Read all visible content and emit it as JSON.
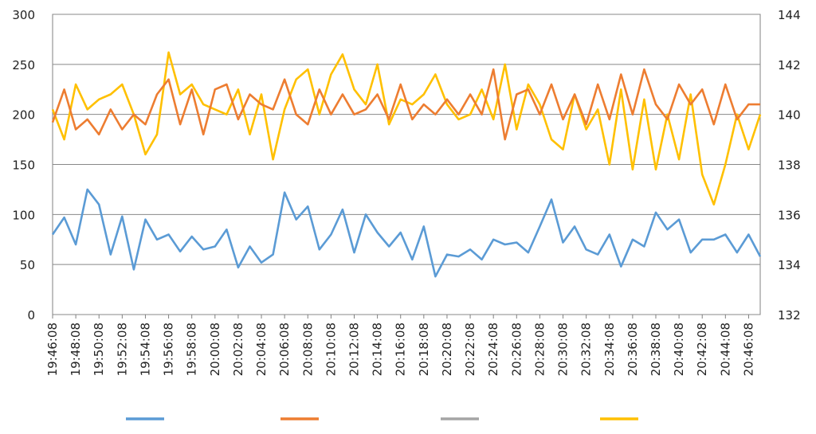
{
  "chart_data": {
    "type": "line",
    "title": "",
    "xlabel": "",
    "ylabel": "",
    "y2label": "",
    "ylim": [
      0,
      300
    ],
    "y2lim": [
      132,
      144
    ],
    "yticks": [
      0,
      50,
      100,
      150,
      200,
      250,
      300
    ],
    "y2ticks": [
      132,
      134,
      136,
      138,
      140,
      142,
      144
    ],
    "xtick_labels": [
      "19:46:08",
      "19:48:08",
      "19:50:08",
      "19:52:08",
      "19:54:08",
      "19:56:08",
      "19:58:08",
      "20:00:08",
      "20:02:08",
      "20:04:08",
      "20:06:08",
      "20:08:08",
      "20:10:08",
      "20:12:08",
      "20:14:08",
      "20:16:08",
      "20:18:08",
      "20:20:08",
      "20:22:08",
      "20:24:08",
      "20:26:08",
      "20:28:08",
      "20:30:08",
      "20:32:08",
      "20:34:08",
      "20:36:08",
      "20:38:08",
      "20:40:08",
      "20:42:08",
      "20:44:08",
      "20:46:08"
    ],
    "minutes_per_label": 2,
    "x_end_minutes": 61,
    "grid": true,
    "legend_position": "bottom",
    "colors": {
      "blue": "#5b9bd5",
      "orange": "#ed7d31",
      "gray": "#a5a5a5",
      "yellow": "#ffc000"
    },
    "series": [
      {
        "color": "#5b9bd5",
        "axis": "left",
        "x": [
          0,
          1,
          2,
          3,
          4,
          5,
          6,
          7,
          8,
          9,
          10,
          11,
          12,
          13,
          14,
          15,
          16,
          17,
          18,
          19,
          20,
          21,
          22,
          23,
          24,
          25,
          26,
          27,
          28,
          29,
          30,
          31,
          32,
          33,
          34,
          35,
          36,
          37,
          38,
          39,
          40,
          41,
          42,
          43,
          44,
          45,
          46,
          47,
          48,
          49,
          50,
          51,
          52,
          53,
          54,
          55,
          56,
          57,
          58,
          59,
          60,
          61
        ],
        "values": [
          80,
          97,
          70,
          125,
          110,
          60,
          98,
          45,
          95,
          75,
          80,
          63,
          78,
          65,
          68,
          85,
          47,
          68,
          52,
          60,
          122,
          95,
          108,
          65,
          80,
          105,
          62,
          100,
          82,
          68,
          82,
          55,
          88,
          38,
          60,
          58,
          65,
          55,
          75,
          70,
          72,
          62,
          88,
          115,
          72,
          88,
          65,
          60,
          80,
          48,
          75,
          68,
          102,
          85,
          95,
          62,
          75,
          75,
          80,
          62,
          80,
          58
        ]
      },
      {
        "color": "#ed7d31",
        "axis": "left",
        "x": [
          0,
          1,
          2,
          3,
          4,
          5,
          6,
          7,
          8,
          9,
          10,
          11,
          12,
          13,
          14,
          15,
          16,
          17,
          18,
          19,
          20,
          21,
          22,
          23,
          24,
          25,
          26,
          27,
          28,
          29,
          30,
          31,
          32,
          33,
          34,
          35,
          36,
          37,
          38,
          39,
          40,
          41,
          42,
          43,
          44,
          45,
          46,
          47,
          48,
          49,
          50,
          51,
          52,
          53,
          54,
          55,
          56,
          57,
          58,
          59,
          60,
          61
        ],
        "values": [
          192,
          225,
          185,
          195,
          180,
          205,
          185,
          200,
          190,
          220,
          235,
          190,
          225,
          180,
          225,
          230,
          195,
          220,
          210,
          205,
          235,
          200,
          190,
          225,
          200,
          220,
          200,
          205,
          220,
          195,
          230,
          195,
          210,
          200,
          215,
          200,
          220,
          200,
          245,
          175,
          220,
          225,
          200,
          230,
          195,
          220,
          190,
          230,
          195,
          240,
          200,
          245,
          210,
          195,
          230,
          210,
          225,
          190,
          230,
          195,
          210,
          210
        ]
      },
      {
        "color": "#a5a5a5",
        "axis": "left",
        "x": [],
        "values": []
      },
      {
        "color": "#ffc000",
        "axis": "left",
        "x": [
          0,
          1,
          2,
          3,
          4,
          5,
          6,
          7,
          8,
          9,
          10,
          11,
          12,
          13,
          14,
          15,
          16,
          17,
          18,
          19,
          20,
          21,
          22,
          23,
          24,
          25,
          26,
          27,
          28,
          29,
          30,
          31,
          32,
          33,
          34,
          35,
          36,
          37,
          38,
          39,
          40,
          41,
          42,
          43,
          44,
          45,
          46,
          47,
          48,
          49,
          50,
          51,
          52,
          53,
          54,
          55,
          56,
          57,
          58,
          59,
          60,
          61
        ],
        "values": [
          205,
          175,
          230,
          205,
          215,
          220,
          230,
          200,
          160,
          180,
          262,
          220,
          230,
          210,
          205,
          200,
          225,
          180,
          220,
          155,
          205,
          235,
          245,
          200,
          240,
          260,
          225,
          210,
          250,
          190,
          215,
          210,
          220,
          240,
          210,
          195,
          200,
          225,
          195,
          250,
          185,
          230,
          210,
          175,
          165,
          220,
          185,
          205,
          150,
          225,
          145,
          215,
          145,
          200,
          155,
          220,
          140,
          110,
          150,
          200,
          165,
          200
        ]
      }
    ]
  }
}
